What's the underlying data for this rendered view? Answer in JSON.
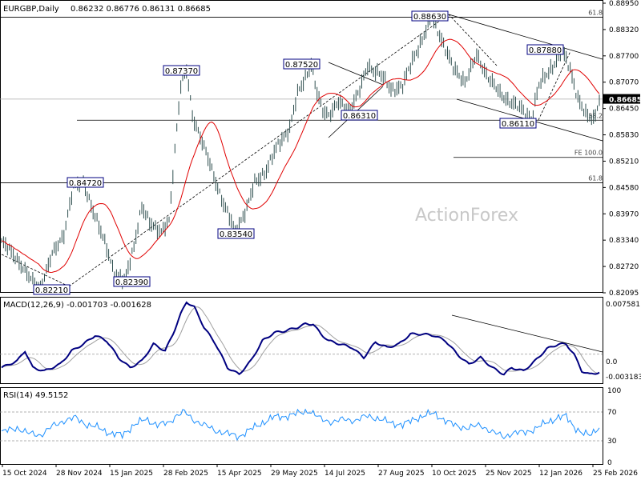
{
  "header": {
    "title": "EURGBP,Daily",
    "ohlc": "0.86232 0.86776 0.86131 0.86685"
  },
  "watermark": "ActionForex",
  "colors": {
    "price": "#2f4f4f",
    "ma": "#e00000",
    "macd": "#000080",
    "signal": "#a0a0a0",
    "rsi": "#1e90ff",
    "line": "#000000",
    "box_border": "#000080"
  },
  "chart_data": {
    "type": "line",
    "dates": [
      "15 Oct 2024",
      "28 Nov 2024",
      "15 Jan 2025",
      "28 Feb 2025",
      "15 Apr 2025",
      "29 May 2025",
      "14 Jul 2025",
      "27 Aug 2025",
      "10 Oct 2025",
      "25 Nov 2025",
      "12 Jan 2026",
      "25 Feb 2026"
    ],
    "price_axis": {
      "ticks": [
        "0.88950",
        "0.88320",
        "0.87700",
        "0.87070",
        "0.86450",
        "0.85830",
        "0.85210",
        "0.84580",
        "0.83970",
        "0.83340",
        "0.82720",
        "0.82095"
      ],
      "ylim": [
        0.82095,
        0.8895
      ],
      "current": "0.86685"
    },
    "price_anchors": [
      [
        0,
        0.833
      ],
      [
        8,
        0.829
      ],
      [
        15,
        0.824
      ],
      [
        20,
        0.8222
      ],
      [
        26,
        0.83
      ],
      [
        32,
        0.835
      ],
      [
        37,
        0.846
      ],
      [
        42,
        0.8475
      ],
      [
        47,
        0.84
      ],
      [
        54,
        0.832
      ],
      [
        58,
        0.825
      ],
      [
        63,
        0.824
      ],
      [
        68,
        0.832
      ],
      [
        72,
        0.841
      ],
      [
        76,
        0.838
      ],
      [
        82,
        0.835
      ],
      [
        86,
        0.838
      ],
      [
        89,
        0.855
      ],
      [
        92,
        0.87
      ],
      [
        95,
        0.8735
      ],
      [
        98,
        0.863
      ],
      [
        102,
        0.858
      ],
      [
        108,
        0.85
      ],
      [
        114,
        0.842
      ],
      [
        120,
        0.8355
      ],
      [
        126,
        0.841
      ],
      [
        130,
        0.847
      ],
      [
        136,
        0.85
      ],
      [
        142,
        0.856
      ],
      [
        148,
        0.86
      ],
      [
        152,
        0.868
      ],
      [
        156,
        0.872
      ],
      [
        159,
        0.8752
      ],
      [
        162,
        0.868
      ],
      [
        165,
        0.864
      ],
      [
        168,
        0.8632
      ],
      [
        173,
        0.866
      ],
      [
        178,
        0.864
      ],
      [
        184,
        0.869
      ],
      [
        188,
        0.8745
      ],
      [
        194,
        0.873
      ],
      [
        200,
        0.869
      ],
      [
        206,
        0.87
      ],
      [
        212,
        0.877
      ],
      [
        218,
        0.883
      ],
      [
        221,
        0.8863
      ],
      [
        226,
        0.881
      ],
      [
        232,
        0.874
      ],
      [
        238,
        0.871
      ],
      [
        244,
        0.877
      ],
      [
        250,
        0.872
      ],
      [
        256,
        0.868
      ],
      [
        262,
        0.866
      ],
      [
        268,
        0.864
      ],
      [
        272,
        0.862
      ],
      [
        276,
        0.87
      ],
      [
        282,
        0.874
      ],
      [
        288,
        0.878
      ],
      [
        292,
        0.874
      ],
      [
        296,
        0.867
      ],
      [
        300,
        0.863
      ],
      [
        304,
        0.862
      ],
      [
        307,
        0.8668
      ]
    ],
    "price_labels": [
      "0.88630",
      "0.87880",
      "0.87520",
      "0.87370",
      "0.86310",
      "0.86110",
      "0.84720",
      "0.83540",
      "0.82390",
      "0.82210"
    ],
    "levels": [
      {
        "label": "61.8",
        "value": 0.8862
      },
      {
        "label": "38.2",
        "value": 0.8618
      },
      {
        "label": "FE 100.0",
        "value": 0.853
      },
      {
        "label": "61.8",
        "value": 0.847
      },
      {
        "label": "",
        "value": 0.8668
      }
    ],
    "macd": {
      "label": "MACD(12,26,9) -0.001703 -0.001628",
      "ticks": [
        "0.007581",
        "0.0",
        "-0.003183"
      ],
      "ylim": [
        -0.0042,
        0.0082
      ],
      "anchors": [
        [
          0,
          -0.002
        ],
        [
          8,
          -0.001
        ],
        [
          12,
          0.0005
        ],
        [
          16,
          -0.002
        ],
        [
          22,
          -0.0025
        ],
        [
          30,
          -0.0015
        ],
        [
          36,
          0.0005
        ],
        [
          42,
          0.0015
        ],
        [
          48,
          0.0028
        ],
        [
          54,
          0.002
        ],
        [
          60,
          -0.0005
        ],
        [
          66,
          -0.002
        ],
        [
          72,
          -0.001
        ],
        [
          78,
          0.0015
        ],
        [
          84,
          0.0005
        ],
        [
          88,
          0.003
        ],
        [
          92,
          0.006
        ],
        [
          95,
          0.0078
        ],
        [
          99,
          0.007
        ],
        [
          104,
          0.004
        ],
        [
          110,
          0.0015
        ],
        [
          116,
          -0.002
        ],
        [
          122,
          -0.003
        ],
        [
          128,
          -0.001
        ],
        [
          134,
          0.002
        ],
        [
          140,
          0.0032
        ],
        [
          146,
          0.0035
        ],
        [
          152,
          0.004
        ],
        [
          156,
          0.0045
        ],
        [
          160,
          0.0045
        ],
        [
          164,
          0.003
        ],
        [
          168,
          0.002
        ],
        [
          174,
          0.0015
        ],
        [
          180,
          0.001
        ],
        [
          186,
          -0.0005
        ],
        [
          192,
          0.0018
        ],
        [
          198,
          0.001
        ],
        [
          204,
          0.0015
        ],
        [
          210,
          0.003
        ],
        [
          216,
          0.003
        ],
        [
          222,
          0.0028
        ],
        [
          228,
          0.002
        ],
        [
          234,
          0.0
        ],
        [
          240,
          -0.0015
        ],
        [
          246,
          -0.0005
        ],
        [
          252,
          -0.002
        ],
        [
          258,
          -0.003
        ],
        [
          262,
          -0.002
        ],
        [
          268,
          -0.0025
        ],
        [
          274,
          -0.001
        ],
        [
          280,
          0.0008
        ],
        [
          286,
          0.0015
        ],
        [
          290,
          0.0015
        ],
        [
          294,
          0.0
        ],
        [
          298,
          -0.0025
        ],
        [
          302,
          -0.003
        ],
        [
          307,
          -0.0027
        ]
      ]
    },
    "rsi": {
      "label": "RSI(14) 49.5152",
      "ticks": [
        "100",
        "70",
        "30",
        "0"
      ],
      "ylim": [
        0,
        100
      ],
      "anchors": [
        [
          0,
          42
        ],
        [
          8,
          48
        ],
        [
          14,
          40
        ],
        [
          20,
          38
        ],
        [
          26,
          50
        ],
        [
          32,
          58
        ],
        [
          38,
          62
        ],
        [
          44,
          52
        ],
        [
          50,
          48
        ],
        [
          56,
          40
        ],
        [
          62,
          38
        ],
        [
          68,
          52
        ],
        [
          74,
          60
        ],
        [
          80,
          52
        ],
        [
          86,
          55
        ],
        [
          90,
          66
        ],
        [
          94,
          70
        ],
        [
          98,
          60
        ],
        [
          104,
          52
        ],
        [
          110,
          44
        ],
        [
          116,
          40
        ],
        [
          122,
          36
        ],
        [
          128,
          46
        ],
        [
          134,
          55
        ],
        [
          140,
          63
        ],
        [
          146,
          64
        ],
        [
          152,
          68
        ],
        [
          158,
          72
        ],
        [
          164,
          60
        ],
        [
          170,
          56
        ],
        [
          176,
          60
        ],
        [
          182,
          58
        ],
        [
          188,
          65
        ],
        [
          194,
          60
        ],
        [
          200,
          55
        ],
        [
          206,
          52
        ],
        [
          212,
          60
        ],
        [
          218,
          66
        ],
        [
          222,
          68
        ],
        [
          228,
          58
        ],
        [
          234,
          50
        ],
        [
          240,
          48
        ],
        [
          246,
          52
        ],
        [
          252,
          42
        ],
        [
          258,
          36
        ],
        [
          262,
          40
        ],
        [
          268,
          42
        ],
        [
          274,
          46
        ],
        [
          280,
          56
        ],
        [
          286,
          62
        ],
        [
          290,
          64
        ],
        [
          294,
          50
        ],
        [
          298,
          40
        ],
        [
          302,
          38
        ],
        [
          307,
          49.5
        ]
      ]
    }
  }
}
